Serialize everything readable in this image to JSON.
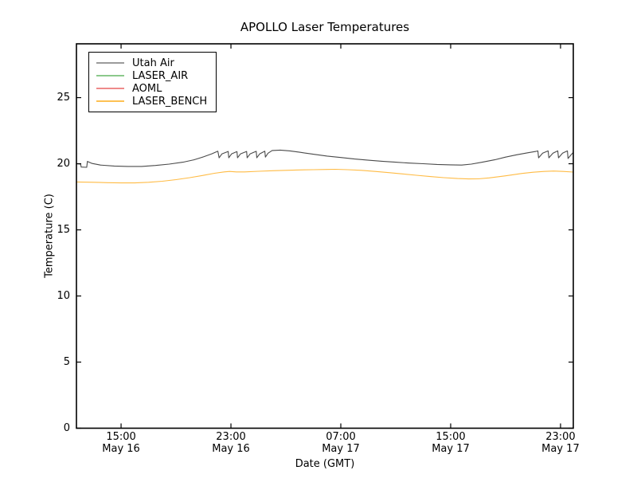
{
  "legend": {
    "position": "upper left",
    "items": [
      {
        "label": "Utah Air",
        "sample_color": "#9b9b9b"
      },
      {
        "label": "LASER_AIR",
        "sample_color": "#8cc98c"
      },
      {
        "label": "AOML",
        "sample_color": "#ef8a8a"
      },
      {
        "label": "LASER_BENCH",
        "sample_color": "#fdc153"
      }
    ]
  },
  "chart_data": {
    "type": "line",
    "title": "APOLLO Laser Temperatures",
    "xlabel": "Date (GMT)",
    "ylabel": "Temperature (C)",
    "grid": false,
    "legend_position": "upper left",
    "x_axis_units": "hours from May 16 00:00 GMT",
    "xlim": [
      11.75,
      47.93
    ],
    "ylim": [
      0,
      29.07
    ],
    "yticks": [
      0,
      5,
      10,
      15,
      20,
      25
    ],
    "xticks": [
      {
        "t": 15,
        "time": "15:00",
        "date": "May 16"
      },
      {
        "t": 23,
        "time": "23:00",
        "date": "May 16"
      },
      {
        "t": 31,
        "time": "07:00",
        "date": "May 17"
      },
      {
        "t": 39,
        "time": "15:00",
        "date": "May 17"
      },
      {
        "t": 47,
        "time": "23:00",
        "date": "May 17"
      }
    ],
    "series": [
      {
        "name": "Utah Air",
        "color": "#4a4a4a",
        "visible_in_plot": true,
        "points": [
          [
            11.75,
            20.0
          ],
          [
            12.05,
            19.97
          ],
          [
            12.1,
            19.75
          ],
          [
            12.5,
            19.73
          ],
          [
            12.55,
            20.18
          ],
          [
            12.9,
            20.02
          ],
          [
            13.5,
            19.9
          ],
          [
            14.5,
            19.83
          ],
          [
            15.5,
            19.8
          ],
          [
            16.5,
            19.8
          ],
          [
            17.5,
            19.87
          ],
          [
            18.5,
            19.97
          ],
          [
            19.5,
            20.12
          ],
          [
            20.3,
            20.3
          ],
          [
            21.0,
            20.52
          ],
          [
            21.6,
            20.75
          ],
          [
            22.05,
            20.95
          ],
          [
            22.14,
            20.45
          ],
          [
            22.35,
            20.75
          ],
          [
            22.8,
            20.93
          ],
          [
            22.84,
            20.45
          ],
          [
            23.05,
            20.75
          ],
          [
            23.44,
            20.92
          ],
          [
            23.48,
            20.45
          ],
          [
            23.7,
            20.75
          ],
          [
            24.14,
            20.93
          ],
          [
            24.18,
            20.45
          ],
          [
            24.4,
            20.75
          ],
          [
            24.84,
            20.94
          ],
          [
            24.88,
            20.45
          ],
          [
            25.1,
            20.75
          ],
          [
            25.47,
            20.95
          ],
          [
            25.51,
            20.5
          ],
          [
            25.7,
            20.8
          ],
          [
            26.0,
            21.0
          ],
          [
            26.6,
            21.03
          ],
          [
            27.3,
            20.97
          ],
          [
            28.0,
            20.87
          ],
          [
            29.0,
            20.72
          ],
          [
            30.0,
            20.58
          ],
          [
            31.0,
            20.47
          ],
          [
            32.0,
            20.36
          ],
          [
            33.0,
            20.27
          ],
          [
            34.0,
            20.19
          ],
          [
            35.0,
            20.12
          ],
          [
            36.0,
            20.05
          ],
          [
            37.0,
            20.0
          ],
          [
            38.0,
            19.95
          ],
          [
            39.0,
            19.92
          ],
          [
            39.8,
            19.9
          ],
          [
            40.5,
            19.97
          ],
          [
            41.3,
            20.12
          ],
          [
            42.2,
            20.3
          ],
          [
            43.0,
            20.5
          ],
          [
            43.8,
            20.68
          ],
          [
            44.6,
            20.83
          ],
          [
            45.2,
            20.93
          ],
          [
            45.35,
            20.97
          ],
          [
            45.4,
            20.45
          ],
          [
            45.7,
            20.8
          ],
          [
            46.1,
            20.97
          ],
          [
            46.15,
            20.45
          ],
          [
            46.45,
            20.8
          ],
          [
            46.8,
            20.97
          ],
          [
            46.85,
            20.45
          ],
          [
            47.15,
            20.8
          ],
          [
            47.5,
            20.97
          ],
          [
            47.55,
            20.4
          ],
          [
            47.8,
            20.72
          ],
          [
            47.93,
            20.85
          ]
        ]
      },
      {
        "name": "LASER_AIR",
        "color": "#8cc98c",
        "visible_in_plot": false,
        "points": []
      },
      {
        "name": "AOML",
        "color": "#ef8a8a",
        "visible_in_plot": false,
        "points": []
      },
      {
        "name": "LASER_BENCH",
        "color": "#ffbb44",
        "visible_in_plot": true,
        "points": [
          [
            11.75,
            18.62
          ],
          [
            13.0,
            18.6
          ],
          [
            14.0,
            18.57
          ],
          [
            15.0,
            18.55
          ],
          [
            16.0,
            18.55
          ],
          [
            17.0,
            18.6
          ],
          [
            18.0,
            18.68
          ],
          [
            19.0,
            18.8
          ],
          [
            20.0,
            18.95
          ],
          [
            21.0,
            19.12
          ],
          [
            21.8,
            19.28
          ],
          [
            22.5,
            19.38
          ],
          [
            22.9,
            19.42
          ],
          [
            23.4,
            19.38
          ],
          [
            24.0,
            19.38
          ],
          [
            25.0,
            19.43
          ],
          [
            26.0,
            19.47
          ],
          [
            27.0,
            19.5
          ],
          [
            28.0,
            19.53
          ],
          [
            29.0,
            19.55
          ],
          [
            30.0,
            19.57
          ],
          [
            30.6,
            19.58
          ],
          [
            31.5,
            19.55
          ],
          [
            32.5,
            19.5
          ],
          [
            33.5,
            19.42
          ],
          [
            34.5,
            19.33
          ],
          [
            35.5,
            19.23
          ],
          [
            36.5,
            19.13
          ],
          [
            37.5,
            19.03
          ],
          [
            38.5,
            18.95
          ],
          [
            39.5,
            18.88
          ],
          [
            40.3,
            18.85
          ],
          [
            41.0,
            18.86
          ],
          [
            41.8,
            18.93
          ],
          [
            42.6,
            19.03
          ],
          [
            43.4,
            19.15
          ],
          [
            44.2,
            19.27
          ],
          [
            45.0,
            19.36
          ],
          [
            45.8,
            19.42
          ],
          [
            46.5,
            19.45
          ],
          [
            47.2,
            19.42
          ],
          [
            47.93,
            19.37
          ]
        ]
      }
    ]
  }
}
